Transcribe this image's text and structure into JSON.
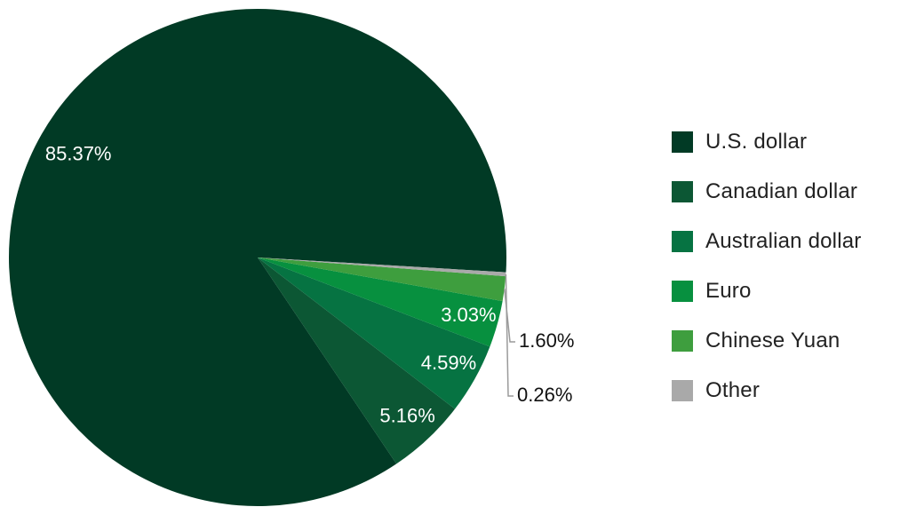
{
  "chart_data": {
    "type": "pie",
    "title": "",
    "categories": [
      "U.S. dollar",
      "Canadian dollar",
      "Australian dollar",
      "Euro",
      "Chinese Yuan",
      "Other"
    ],
    "values": [
      85.37,
      5.16,
      4.59,
      3.03,
      1.6,
      0.26
    ],
    "data_labels": [
      "85.37%",
      "5.16%",
      "4.59%",
      "3.03%",
      "1.60%",
      "0.26%"
    ],
    "colors": [
      "#013A25",
      "#0C5734",
      "#067342",
      "#07903F",
      "#3E9E3E",
      "#A9A9A9"
    ],
    "legend_position": "right"
  },
  "legend": {
    "items": [
      {
        "label": "U.S. dollar",
        "color": "#013A25"
      },
      {
        "label": "Canadian dollar",
        "color": "#0C5734"
      },
      {
        "label": "Australian dollar",
        "color": "#067342"
      },
      {
        "label": "Euro",
        "color": "#07903F"
      },
      {
        "label": "Chinese Yuan",
        "color": "#3E9E3E"
      },
      {
        "label": "Other",
        "color": "#A9A9A9"
      }
    ]
  }
}
